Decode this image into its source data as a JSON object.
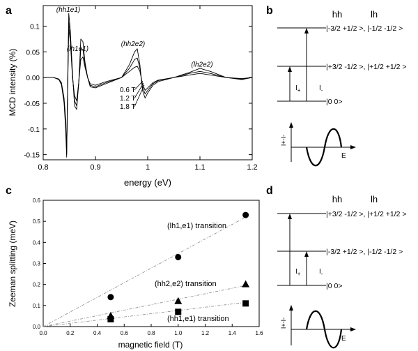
{
  "panels": {
    "a": "a",
    "b": "b",
    "c": "c",
    "d": "d"
  },
  "chart_data": [
    {
      "panel": "a",
      "type": "line",
      "xlabel": "energy (eV)",
      "ylabel": "MCD intensity (%)",
      "xlim": [
        0.8,
        1.2
      ],
      "ylim": [
        -0.16,
        0.14
      ],
      "xticks": [
        0.8,
        0.9,
        1.0,
        1.1,
        1.2
      ],
      "yticks": [
        -0.15,
        -0.1,
        -0.05,
        0.0,
        0.05,
        0.1
      ],
      "xtick_labels": [
        "0.8",
        "0.9",
        "1",
        "1.1",
        "1.2"
      ],
      "ytick_labels": [
        "-0.15",
        "-0.1",
        "-0.05",
        "0.00",
        "0.05",
        "0.1"
      ],
      "annotations": [
        {
          "text": "(hh1e1)",
          "x": 0.848,
          "y": 0.128
        },
        {
          "text": "(lh1e1)",
          "x": 0.866,
          "y": 0.052
        },
        {
          "text": "(hh2e2)",
          "x": 0.972,
          "y": 0.061
        },
        {
          "text": "(lh2e2)",
          "x": 1.104,
          "y": 0.021
        }
      ],
      "series": [
        {
          "name": "0.6 T",
          "x": [
            0.8,
            0.82,
            0.83,
            0.835,
            0.84,
            0.843,
            0.845,
            0.847,
            0.849,
            0.852,
            0.856,
            0.86,
            0.864,
            0.868,
            0.872,
            0.876,
            0.88,
            0.885,
            0.89,
            0.9,
            0.92,
            0.95,
            0.965,
            0.975,
            0.98,
            0.985,
            0.99,
            0.995,
            1.0,
            1.01,
            1.02,
            1.05,
            1.08,
            1.1,
            1.12,
            1.15,
            1.18,
            1.2
          ],
          "y": [
            0.0,
            0.0,
            -0.003,
            -0.01,
            -0.04,
            -0.08,
            -0.145,
            -0.02,
            0.095,
            0.07,
            0.0,
            -0.035,
            -0.045,
            -0.01,
            0.035,
            0.04,
            0.02,
            0.0,
            -0.012,
            -0.015,
            -0.008,
            0.0,
            0.012,
            0.02,
            0.022,
            0.012,
            -0.012,
            -0.025,
            -0.02,
            -0.01,
            -0.005,
            0.0,
            0.005,
            0.008,
            0.005,
            0.0,
            -0.002,
            0.0
          ]
        },
        {
          "name": "1.2 T",
          "x": [
            0.8,
            0.82,
            0.83,
            0.835,
            0.84,
            0.843,
            0.845,
            0.847,
            0.849,
            0.852,
            0.856,
            0.86,
            0.864,
            0.868,
            0.872,
            0.876,
            0.88,
            0.885,
            0.89,
            0.9,
            0.92,
            0.95,
            0.965,
            0.975,
            0.98,
            0.985,
            0.99,
            0.995,
            1.0,
            1.01,
            1.02,
            1.05,
            1.08,
            1.1,
            1.12,
            1.15,
            1.18,
            1.2
          ],
          "y": [
            0.0,
            0.0,
            -0.003,
            -0.012,
            -0.045,
            -0.09,
            -0.15,
            -0.01,
            0.108,
            0.08,
            0.005,
            -0.045,
            -0.055,
            -0.01,
            0.055,
            0.055,
            0.025,
            0.0,
            -0.015,
            -0.018,
            -0.01,
            0.0,
            0.018,
            0.035,
            0.038,
            0.018,
            -0.018,
            -0.032,
            -0.025,
            -0.012,
            -0.006,
            0.0,
            0.008,
            0.012,
            0.008,
            0.0,
            -0.003,
            0.0
          ]
        },
        {
          "name": "1.8 T",
          "x": [
            0.8,
            0.82,
            0.83,
            0.835,
            0.84,
            0.843,
            0.845,
            0.847,
            0.849,
            0.852,
            0.856,
            0.86,
            0.864,
            0.868,
            0.872,
            0.876,
            0.88,
            0.885,
            0.89,
            0.9,
            0.92,
            0.95,
            0.965,
            0.975,
            0.98,
            0.985,
            0.99,
            0.995,
            1.0,
            1.01,
            1.02,
            1.05,
            1.08,
            1.1,
            1.12,
            1.15,
            1.18,
            1.2
          ],
          "y": [
            0.0,
            0.0,
            -0.004,
            -0.014,
            -0.05,
            -0.1,
            -0.155,
            0.0,
            0.125,
            0.09,
            0.01,
            -0.055,
            -0.062,
            -0.012,
            0.075,
            0.07,
            0.03,
            0.0,
            -0.018,
            -0.02,
            -0.012,
            0.0,
            0.025,
            0.05,
            0.056,
            0.025,
            -0.025,
            -0.04,
            -0.03,
            -0.015,
            -0.008,
            0.0,
            0.01,
            0.018,
            0.012,
            0.0,
            -0.004,
            0.0
          ]
        }
      ]
    },
    {
      "panel": "c",
      "type": "scatter",
      "xlabel": "magnetic field (T)",
      "ylabel": "Zeeman splitting (meV)",
      "xlim": [
        0,
        1.6
      ],
      "ylim": [
        0,
        0.6
      ],
      "xticks": [
        0,
        0.2,
        0.4,
        0.6,
        0.8,
        1.0,
        1.2,
        1.4,
        1.6
      ],
      "yticks": [
        0,
        0.1,
        0.2,
        0.3,
        0.4,
        0.5,
        0.6
      ],
      "xtick_labels": [
        "0.0",
        "0.2",
        "0.4",
        "0.6",
        "0.8",
        "1.0",
        "1.2",
        "1.4",
        "1.6"
      ],
      "ytick_labels": [
        "0.0",
        "0.1",
        "0.2",
        "0.3",
        "0.4",
        "0.5",
        "0.6"
      ],
      "series": [
        {
          "name": "(lh1,e1) transition",
          "marker": "circle",
          "x": [
            0.5,
            1.0,
            1.5
          ],
          "y": [
            0.14,
            0.33,
            0.53
          ],
          "fit": [
            0.0,
            0.0,
            1.5,
            0.52
          ]
        },
        {
          "name": "(hh2,e2) transition",
          "marker": "triangle",
          "x": [
            0.5,
            1.0,
            1.5
          ],
          "y": [
            0.05,
            0.12,
            0.2
          ],
          "fit": [
            0.0,
            0.0,
            1.5,
            0.195
          ]
        },
        {
          "name": "(hh1,e1) transition",
          "marker": "square",
          "x": [
            0.5,
            1.0,
            1.5
          ],
          "y": [
            0.035,
            0.07,
            0.11
          ],
          "fit": [
            0.0,
            0.0,
            1.5,
            0.115
          ]
        }
      ]
    }
  ],
  "diagram_b": {
    "col_hh": "hh",
    "col_lh": "lh",
    "upper_state": "|-3/2  +1/2 >, |-1/2  -1/2 >",
    "middle_state": "|+3/2  -1/2 >, |+1/2  +1/2 >",
    "ground_state": "|0   0>",
    "i_plus": "I",
    "i_plus_sub": "+",
    "i_minus": "I",
    "i_minus_sub": "-",
    "inset_ylabel": "I+-I-",
    "inset_xlabel": "E"
  },
  "diagram_d": {
    "col_hh": "hh",
    "col_lh": "lh",
    "upper_state": "|+3/2  -1/2 >, |+1/2  +1/2 >",
    "middle_state": "|-3/2  +1/2 >, |-1/2  -1/2 >",
    "ground_state": "|0   0>",
    "i_plus": "I",
    "i_plus_sub": "+",
    "i_minus": "I",
    "i_minus_sub": "-",
    "inset_ylabel": "I+-I-",
    "inset_xlabel": "E"
  }
}
